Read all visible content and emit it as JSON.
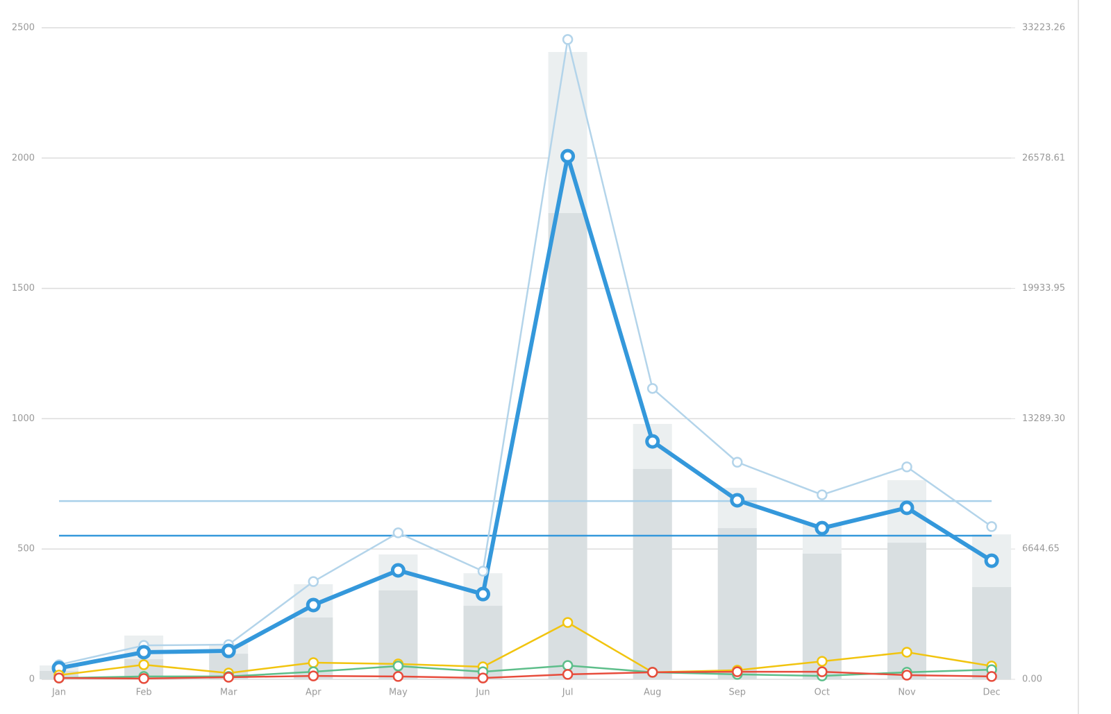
{
  "chart_data": {
    "type": "combo",
    "categories": [
      "Jan",
      "Feb",
      "Mar",
      "Apr",
      "May",
      "Jun",
      "Jul",
      "Aug",
      "Sep",
      "Oct",
      "Nov",
      "Dec"
    ],
    "ylim": [
      0,
      2500
    ],
    "yticks": [
      0,
      500,
      1000,
      1500,
      2000,
      2500
    ],
    "y2lim": [
      0,
      33223.26
    ],
    "y2ticks": [
      {
        "value": 0,
        "label": "0.00"
      },
      6644.65,
      {
        "value": 13289.3,
        "label": "13289.30"
      },
      19933.95,
      26578.61,
      33223.26
    ],
    "grid": true,
    "series": [
      {
        "type": "bar",
        "color": "#ebeff0",
        "values": [
          53,
          168,
          136,
          365,
          479,
          407,
          2407,
          980,
          735,
          596,
          764,
          556
        ]
      },
      {
        "type": "bar",
        "color": "#d9dfe1",
        "values": [
          32,
          77,
          98,
          237,
          341,
          282,
          1789,
          807,
          580,
          482,
          524,
          354
        ]
      },
      {
        "type": "line",
        "color": "#b3d4ea",
        "values": [
          56,
          130,
          133,
          375,
          562,
          415,
          2455,
          1116,
          833,
          708,
          815,
          586
        ]
      },
      {
        "type": "line",
        "color": "#3498db",
        "values": [
          43,
          104,
          109,
          285,
          418,
          327,
          2007,
          913,
          687,
          580,
          658,
          455
        ]
      },
      {
        "type": "line",
        "color": "#f1c40f",
        "values": [
          16,
          56,
          24,
          64,
          59,
          48,
          218,
          27,
          35,
          69,
          104,
          51
        ]
      },
      {
        "type": "line",
        "color": "#5dbe8a",
        "values": [
          5,
          11,
          11,
          29,
          51,
          29,
          53,
          27,
          19,
          13,
          27,
          37
        ]
      },
      {
        "type": "line",
        "color": "#e74c3c",
        "values": [
          5,
          3,
          8,
          13,
          11,
          5,
          19,
          27,
          29,
          29,
          16,
          11
        ]
      }
    ],
    "reference_lines": [
      {
        "value": 684,
        "color": "#a8d0ea"
      },
      {
        "value": 551,
        "color": "#3498db"
      }
    ]
  }
}
